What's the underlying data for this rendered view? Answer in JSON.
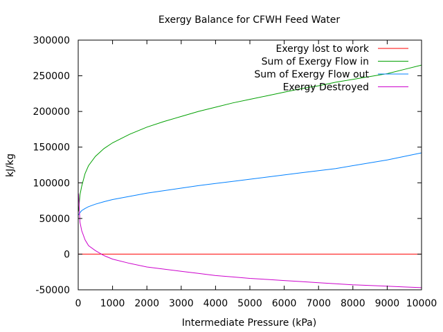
{
  "chart_data": {
    "type": "line",
    "title": "Exergy Balance for CFWH Feed Water",
    "xlabel": "Intermediate Pressure (kPa)",
    "ylabel": "kJ/kg",
    "xlim": [
      0,
      10000
    ],
    "ylim": [
      -50000,
      300000
    ],
    "x_ticks": [
      0,
      1000,
      2000,
      3000,
      4000,
      5000,
      6000,
      7000,
      8000,
      9000,
      10000
    ],
    "y_ticks": [
      -50000,
      0,
      50000,
      100000,
      150000,
      200000,
      250000,
      300000
    ],
    "grid": false,
    "legend_position": "top-right",
    "x": [
      10,
      50,
      100,
      200,
      300,
      500,
      750,
      1000,
      1500,
      2000,
      2500,
      3000,
      3500,
      4000,
      4500,
      5000,
      5500,
      6000,
      6500,
      7000,
      7500,
      8000,
      8500,
      9000,
      9500,
      10000
    ],
    "series": [
      {
        "name": "Exergy lost to work",
        "color": "#ff0000",
        "values": [
          0,
          0,
          0,
          0,
          0,
          0,
          0,
          0,
          0,
          0,
          0,
          0,
          0,
          0,
          0,
          0,
          0,
          0,
          0,
          0,
          0,
          0,
          0,
          0,
          0,
          0
        ]
      },
      {
        "name": "Sum of Exergy Flow in",
        "color": "#00a000",
        "values": [
          60000,
          83000,
          95000,
          113000,
          124000,
          137000,
          148000,
          156000,
          168000,
          178000,
          186000,
          193000,
          200000,
          206000,
          212000,
          217000,
          222000,
          227000,
          232000,
          236000,
          241000,
          245000,
          249000,
          253000,
          259000,
          265000
        ]
      },
      {
        "name": "Sum of Exergy Flow out",
        "color": "#0080ff",
        "values": [
          55000,
          58000,
          61000,
          64000,
          66500,
          70000,
          73500,
          76500,
          81000,
          85500,
          89000,
          92500,
          96000,
          99000,
          102000,
          105000,
          108000,
          111000,
          114000,
          117000,
          120000,
          124000,
          128000,
          132000,
          137000,
          142000
        ]
      },
      {
        "name": "Exergy Destroyed",
        "color": "#cc00cc",
        "values": [
          85000,
          45000,
          33000,
          20000,
          12000,
          5000,
          -2000,
          -7000,
          -13000,
          -18000,
          -21000,
          -24000,
          -27000,
          -30000,
          -32000,
          -34000,
          -35500,
          -37000,
          -38500,
          -40000,
          -41500,
          -43000,
          -44000,
          -45000,
          -46000,
          -47000
        ]
      }
    ]
  }
}
